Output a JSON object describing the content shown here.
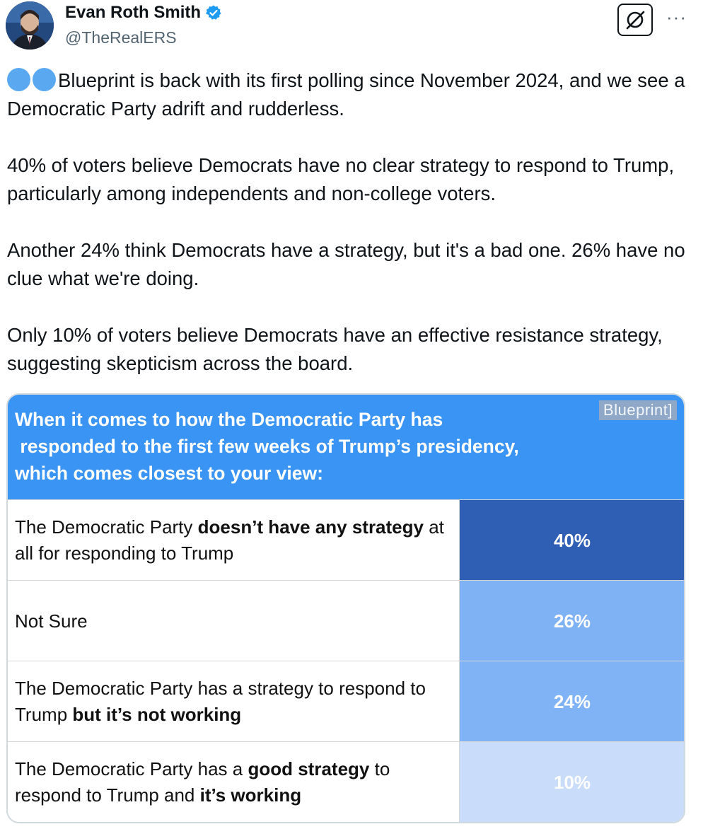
{
  "author": {
    "name": "Evan Roth Smith",
    "handle": "@TheRealERS",
    "verified_icon": "verified-badge-icon",
    "avatar_icon": "avatar-photo"
  },
  "actions": {
    "grok_icon": "grok-icon",
    "more_icon": "more-icon",
    "more_label": "···"
  },
  "tweet": {
    "emoji_icon": "blue-circle-emoji",
    "paragraphs": [
      "Blueprint is back with its first polling since November 2024, and we see a Democratic Party adrift and rudderless.",
      "40% of voters believe Democrats have no clear strategy to respond to Trump, particularly among independents and non-college voters.",
      "Another 24% think Democrats have a strategy, but it's a bad one. 26% have no clue what we're doing.",
      "Only 10% of voters believe Democrats have an effective resistance strategy, suggesting skepticism across the board."
    ]
  },
  "card": {
    "question": "When it comes to how the Democratic Party has\n responded to the first few weeks of Trump’s presidency,\nwhich comes closest to your view:",
    "brand": "Blueprint]",
    "header_color": "#3a94f4",
    "rows": [
      {
        "label_parts": [
          {
            "t": "The Democratic Party ",
            "b": false
          },
          {
            "t": "doesn’t have any strategy",
            "b": true
          },
          {
            "t": " at all for responding to Trump",
            "b": false
          }
        ],
        "value": "40%",
        "color": "#2f5fb5"
      },
      {
        "label_parts": [
          {
            "t": "Not Sure",
            "b": false
          }
        ],
        "value": "26%",
        "color": "#7fb1f5"
      },
      {
        "label_parts": [
          {
            "t": "The Democratic Party has a strategy to respond to Trump ",
            "b": false
          },
          {
            "t": "but it’s not working",
            "b": true
          }
        ],
        "value": "24%",
        "color": "#80b3f6"
      },
      {
        "label_parts": [
          {
            "t": "The Democratic Party has a ",
            "b": false
          },
          {
            "t": "good strategy",
            "b": true
          },
          {
            "t": " to respond to Trump and ",
            "b": false
          },
          {
            "t": "it’s working",
            "b": true
          }
        ],
        "value": "10%",
        "color": "#c9dcfa"
      }
    ]
  }
}
